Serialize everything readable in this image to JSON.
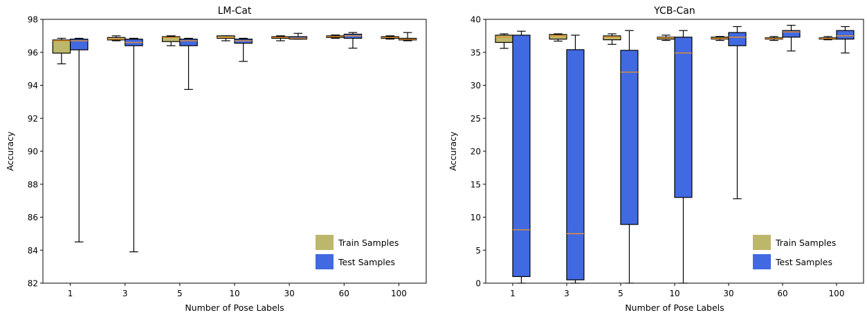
{
  "chart_data": [
    {
      "type": "box",
      "title": "LM-Cat",
      "xlabel": "Number of Pose Labels",
      "ylabel": "Accuracy",
      "ylim": [
        82,
        98
      ],
      "yticks": [
        82,
        84,
        86,
        88,
        90,
        92,
        94,
        96,
        98
      ],
      "categories": [
        "1",
        "3",
        "5",
        "10",
        "30",
        "60",
        "100"
      ],
      "legend": {
        "placement": "lower-right",
        "entries": [
          "Train Samples",
          "Test Samples"
        ]
      },
      "series": [
        {
          "name": "Train Samples",
          "color": "#bdb76b",
          "boxes": [
            {
              "min": 95.3,
              "q1": 95.95,
              "median": 96.7,
              "q3": 96.75,
              "max": 96.85
            },
            {
              "min": 96.7,
              "q1": 96.75,
              "median": 96.8,
              "q3": 96.9,
              "max": 97.0
            },
            {
              "min": 96.4,
              "q1": 96.65,
              "median": 96.9,
              "q3": 96.95,
              "max": 97.0
            },
            {
              "min": 96.7,
              "q1": 96.85,
              "median": 96.9,
              "q3": 97.0,
              "max": 97.0
            },
            {
              "min": 96.7,
              "q1": 96.85,
              "median": 96.9,
              "q3": 96.95,
              "max": 97.0
            },
            {
              "min": 96.85,
              "q1": 96.9,
              "median": 96.95,
              "q3": 97.0,
              "max": 97.05
            },
            {
              "min": 96.8,
              "q1": 96.85,
              "median": 96.9,
              "q3": 96.95,
              "max": 97.0
            }
          ]
        },
        {
          "name": "Test Samples",
          "color": "#4169e1",
          "boxes": [
            {
              "min": 84.5,
              "q1": 96.15,
              "median": 96.7,
              "q3": 96.8,
              "max": 96.85
            },
            {
              "min": 83.9,
              "q1": 96.4,
              "median": 96.6,
              "q3": 96.8,
              "max": 96.85
            },
            {
              "min": 93.75,
              "q1": 96.4,
              "median": 96.7,
              "q3": 96.8,
              "max": 96.85
            },
            {
              "min": 95.45,
              "q1": 96.55,
              "median": 96.7,
              "q3": 96.8,
              "max": 96.85
            },
            {
              "min": 96.8,
              "q1": 96.8,
              "median": 96.85,
              "q3": 96.95,
              "max": 97.15
            },
            {
              "min": 96.25,
              "q1": 96.85,
              "median": 97.0,
              "q3": 97.1,
              "max": 97.2
            },
            {
              "min": 96.7,
              "q1": 96.75,
              "median": 96.8,
              "q3": 96.85,
              "max": 97.2
            }
          ]
        }
      ]
    },
    {
      "type": "box",
      "title": "YCB-Can",
      "xlabel": "Number of Pose Labels",
      "ylabel": "Accuracy",
      "ylim": [
        0,
        40
      ],
      "yticks": [
        0,
        5,
        10,
        15,
        20,
        25,
        30,
        35,
        40
      ],
      "categories": [
        "1",
        "3",
        "5",
        "10",
        "30",
        "60",
        "100"
      ],
      "legend": {
        "placement": "lower-right",
        "entries": [
          "Train Samples",
          "Test Samples"
        ]
      },
      "series": [
        {
          "name": "Train Samples",
          "color": "#bdb76b",
          "boxes": [
            {
              "min": 35.6,
              "q1": 36.5,
              "median": 37.3,
              "q3": 37.6,
              "max": 37.8
            },
            {
              "min": 36.7,
              "q1": 37.0,
              "median": 37.5,
              "q3": 37.7,
              "max": 37.8
            },
            {
              "min": 36.2,
              "q1": 36.9,
              "median": 37.3,
              "q3": 37.5,
              "max": 37.8
            },
            {
              "min": 36.8,
              "q1": 37.0,
              "median": 37.2,
              "q3": 37.3,
              "max": 37.6
            },
            {
              "min": 36.8,
              "q1": 37.0,
              "median": 37.1,
              "q3": 37.3,
              "max": 37.4
            },
            {
              "min": 36.8,
              "q1": 37.0,
              "median": 37.1,
              "q3": 37.2,
              "max": 37.4
            },
            {
              "min": 36.9,
              "q1": 37.0,
              "median": 37.1,
              "q3": 37.2,
              "max": 37.4
            }
          ]
        },
        {
          "name": "Test Samples",
          "color": "#4169e1",
          "boxes": [
            {
              "min": 0,
              "q1": 1.0,
              "median": 8.1,
              "q3": 37.6,
              "max": 38.2
            },
            {
              "min": 0,
              "q1": 0.5,
              "median": 7.5,
              "q3": 35.4,
              "max": 37.6
            },
            {
              "min": 0,
              "q1": 8.9,
              "median": 32.0,
              "q3": 35.3,
              "max": 38.3
            },
            {
              "min": 0,
              "q1": 13.0,
              "median": 34.9,
              "q3": 37.3,
              "max": 38.3
            },
            {
              "min": 12.8,
              "q1": 36.0,
              "median": 37.3,
              "q3": 38.0,
              "max": 38.9
            },
            {
              "min": 35.2,
              "q1": 37.3,
              "median": 38.1,
              "q3": 38.3,
              "max": 39.1
            },
            {
              "min": 34.9,
              "q1": 37.0,
              "median": 37.5,
              "q3": 38.3,
              "max": 38.9
            }
          ]
        }
      ]
    }
  ]
}
